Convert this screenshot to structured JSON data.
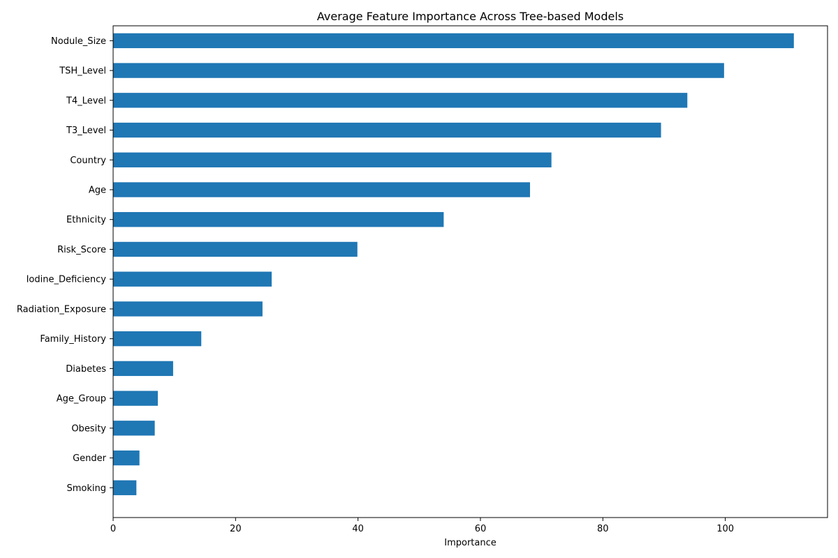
{
  "chart_data": {
    "type": "bar",
    "orientation": "horizontal",
    "title": "Average Feature Importance Across Tree-based Models",
    "xlabel": "Importance",
    "ylabel": "",
    "xlim": [
      0,
      116.7
    ],
    "x_ticks": [
      0,
      20,
      40,
      60,
      80,
      100
    ],
    "grid": false,
    "bar_color": "#1f77b4",
    "categories": [
      "Nodule_Size",
      "TSH_Level",
      "T4_Level",
      "T3_Level",
      "Country",
      "Age",
      "Ethnicity",
      "Risk_Score",
      "Iodine_Deficiency",
      "Radiation_Exposure",
      "Family_History",
      "Diabetes",
      "Age_Group",
      "Obesity",
      "Gender",
      "Smoking"
    ],
    "values": [
      111.2,
      99.8,
      93.8,
      89.5,
      71.6,
      68.1,
      54.0,
      39.9,
      25.9,
      24.4,
      14.4,
      9.8,
      7.3,
      6.8,
      4.3,
      3.8
    ]
  }
}
